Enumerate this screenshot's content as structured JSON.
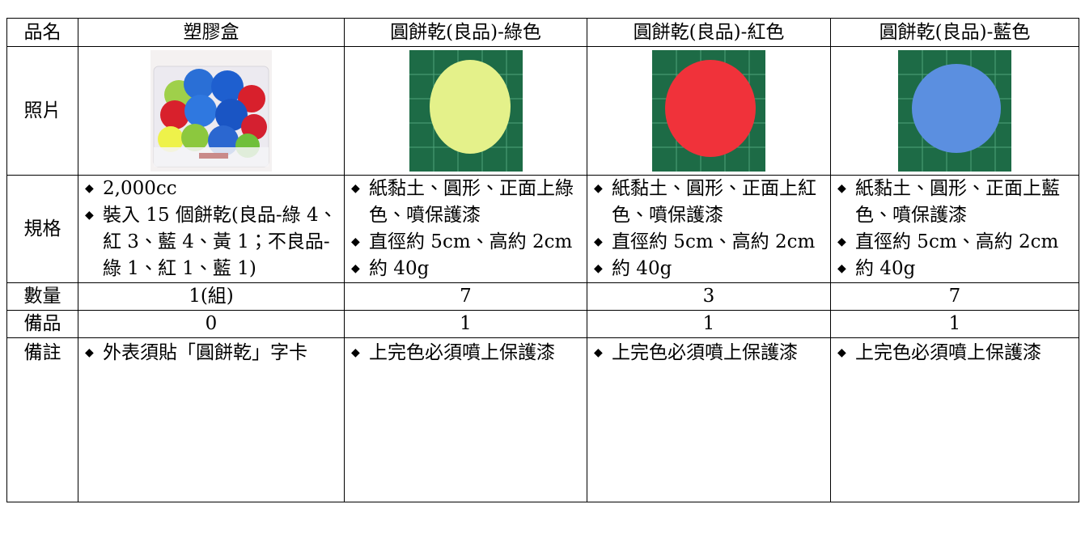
{
  "table": {
    "header": [
      "品名",
      "塑膠盒",
      "圓餅乾(良品)-綠色",
      "圓餅乾(良品)-紅色",
      "圓餅乾(良品)-藍色"
    ],
    "photo_label": "照片",
    "rows": [
      {
        "label": "規格",
        "cells": [
          [
            "2,000cc",
            "裝入 15 個餅乾(良品-綠 4、紅 3、藍 4、黃 1；不良品-綠 1、紅 1、藍 1)"
          ],
          [
            "紙黏土、圓形、正面上綠色、噴保護漆",
            "直徑約 5cm、高約 2cm",
            "約 40g"
          ],
          [
            "紙黏土、圓形、正面上紅色、噴保護漆",
            "直徑約 5cm、高約 2cm",
            "約 40g"
          ],
          [
            "紙黏土、圓形、正面上藍色、噴保護漆",
            "直徑約 5cm、高約 2cm",
            "約 40g"
          ]
        ]
      },
      {
        "label": "數量",
        "cells": [
          "1(組)",
          "7",
          "3",
          "7"
        ]
      },
      {
        "label": "備品",
        "cells": [
          "0",
          "1",
          "1",
          "1"
        ]
      },
      {
        "label": "備註",
        "cells": [
          [
            "外表須貼「圓餅乾」字卡"
          ],
          [
            "上完色必須噴上保護漆"
          ],
          [
            "上完色必須噴上保護漆"
          ],
          [
            "上完色必須噴上保護漆"
          ]
        ]
      }
    ]
  }
}
